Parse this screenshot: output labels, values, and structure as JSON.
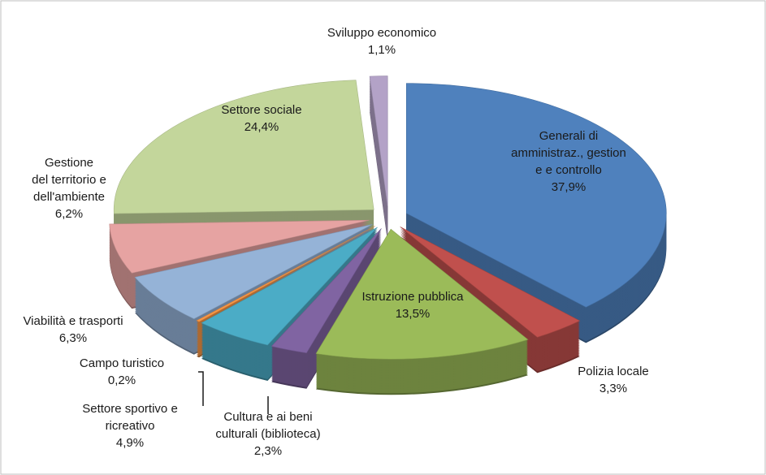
{
  "chart_data": {
    "type": "pie3d",
    "categories": [
      "Generali di\namministraz., gestion\ne e controllo",
      "Polizia locale",
      "Istruzione pubblica",
      "Cultura e ai beni\nculturali (biblioteca)",
      "Settore sportivo e\nricreativo",
      "Campo turistico",
      "Viabilità e trasporti",
      "Gestione\ndel territorio e\ndell'ambiente",
      "Settore sociale",
      "Sviluppo economico"
    ],
    "values": [
      37.9,
      3.3,
      13.5,
      2.3,
      4.9,
      0.2,
      6.3,
      6.2,
      24.4,
      1.1
    ],
    "value_labels": [
      "37,9%",
      "3,3%",
      "13,5%",
      "2,3%",
      "4,9%",
      "0,2%",
      "6,3%",
      "6,2%",
      "24,4%",
      "1,1%"
    ],
    "colors": [
      "#4f81bd",
      "#c0504d",
      "#9bbb59",
      "#8064a2",
      "#4bacc6",
      "#f79646",
      "#95b3d7",
      "#e6a3a2",
      "#c3d69b",
      "#b3a2c7"
    ]
  }
}
